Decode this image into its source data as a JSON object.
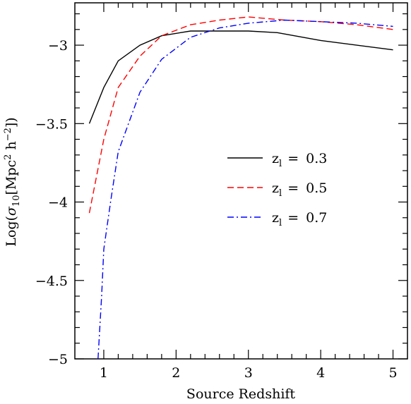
{
  "chart_data": {
    "type": "line",
    "xlabel": "Source Redshift",
    "ylabel": {
      "prefix": "Log(",
      "sigma": "σ",
      "sub": "10",
      "bracket_open": "[Mpc",
      "sup1": "2",
      "mid": " h",
      "sup2": "−2",
      "close": "])"
    },
    "xlim": [
      0.6,
      5.2
    ],
    "ylim": [
      -5,
      -2.73
    ],
    "x_ticks": [
      1,
      2,
      3,
      4,
      5
    ],
    "x_tick_labels": [
      "1",
      "2",
      "3",
      "4",
      "5"
    ],
    "y_ticks": [
      -5,
      -4.5,
      -4,
      -3.5,
      -3
    ],
    "y_tick_labels": [
      "−5",
      "−4.5",
      "−4",
      "−3.5",
      "−3"
    ],
    "grid": false,
    "legend_position": "center-right",
    "series": [
      {
        "name": "0.3",
        "color": "#000000",
        "dash": "solid",
        "x": [
          0.8,
          1.0,
          1.2,
          1.5,
          1.8,
          2.2,
          2.6,
          3.0,
          3.4,
          4.0,
          5.0
        ],
        "y": [
          -3.5,
          -3.27,
          -3.1,
          -3.0,
          -2.94,
          -2.91,
          -2.91,
          -2.91,
          -2.92,
          -2.97,
          -3.03
        ]
      },
      {
        "name": "0.5",
        "color": "#ff0000",
        "dash": "dashed",
        "x": [
          0.8,
          1.0,
          1.2,
          1.5,
          1.8,
          2.2,
          2.6,
          3.0,
          3.5,
          4.0,
          4.5,
          5.0
        ],
        "y": [
          -4.07,
          -3.6,
          -3.27,
          -3.07,
          -2.94,
          -2.87,
          -2.84,
          -2.82,
          -2.84,
          -2.85,
          -2.87,
          -2.9
        ]
      },
      {
        "name": "0.7",
        "color": "#0000ff",
        "dash": "dashdot",
        "x": [
          0.92,
          0.97,
          1.0,
          1.1,
          1.2,
          1.5,
          1.8,
          2.2,
          2.6,
          3.0,
          3.5,
          4.0,
          4.5,
          5.0
        ],
        "y": [
          -5.0,
          -4.6,
          -4.3,
          -3.98,
          -3.68,
          -3.3,
          -3.09,
          -2.95,
          -2.89,
          -2.86,
          -2.84,
          -2.85,
          -2.86,
          -2.88
        ]
      }
    ],
    "legend_label": {
      "base": "z",
      "sub": "l",
      "eq": "="
    }
  }
}
